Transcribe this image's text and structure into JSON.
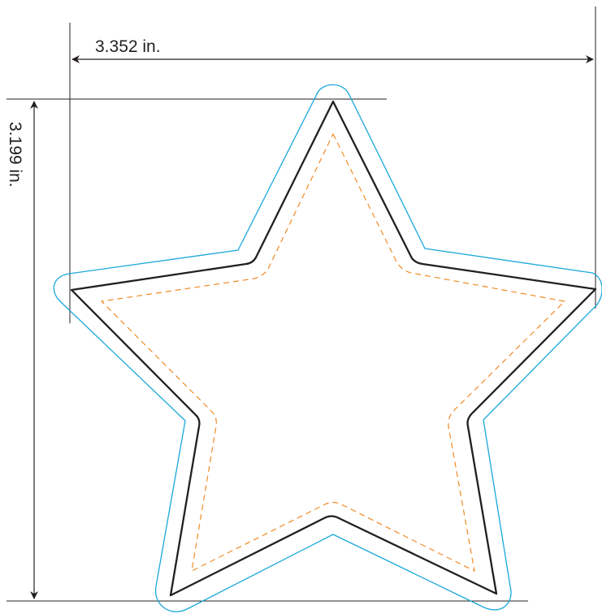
{
  "dimensions": {
    "width_label": "3.352 in.",
    "height_label": "3.199 in."
  },
  "colors": {
    "bleed_outline": "#1ba7d9",
    "cut_line": "#231f20",
    "safe_line": "#f08a24",
    "dimension_line": "#231f20"
  }
}
